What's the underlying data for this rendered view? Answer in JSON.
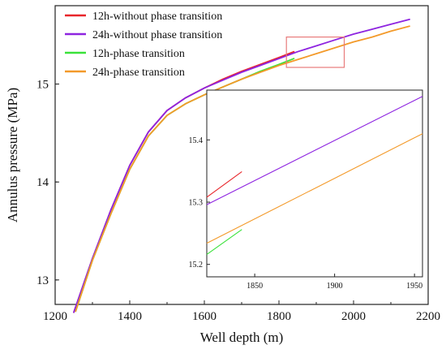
{
  "chart_data": [
    {
      "type": "line",
      "xlabel": "Well depth (m)",
      "ylabel": "Annulus pressure (MPa)",
      "xlim": [
        1200,
        2200
      ],
      "ylim": [
        12.75,
        15.8
      ],
      "xticks": [
        1200,
        1400,
        1600,
        1800,
        2000,
        2200
      ],
      "yticks": [
        13,
        14,
        15
      ],
      "legend_position": "top-left",
      "series": [
        {
          "name": "12h-without phase transition",
          "color": "#e8262b",
          "x": [
            1250,
            1300,
            1350,
            1400,
            1450,
            1500,
            1550,
            1600,
            1650,
            1700,
            1750,
            1800,
            1840
          ],
          "y": [
            12.67,
            13.22,
            13.72,
            14.17,
            14.51,
            14.73,
            14.86,
            14.96,
            15.05,
            15.13,
            15.2,
            15.27,
            15.33
          ]
        },
        {
          "name": "24h-without phase transition",
          "color": "#8e24e0",
          "x": [
            1250,
            1300,
            1350,
            1400,
            1450,
            1500,
            1550,
            1600,
            1650,
            1700,
            1750,
            1800,
            1850,
            1900,
            1950,
            2000,
            2050,
            2100,
            2150
          ],
          "y": [
            12.67,
            13.22,
            13.72,
            14.17,
            14.51,
            14.73,
            14.86,
            14.96,
            15.04,
            15.12,
            15.19,
            15.26,
            15.33,
            15.39,
            15.45,
            15.51,
            15.56,
            15.61,
            15.66
          ]
        },
        {
          "name": "12h-phase transition",
          "color": "#3ae23a",
          "x": [
            1255,
            1300,
            1350,
            1400,
            1450,
            1500,
            1550,
            1600,
            1650,
            1700,
            1750,
            1800,
            1840
          ],
          "y": [
            12.68,
            13.2,
            13.68,
            14.13,
            14.47,
            14.68,
            14.8,
            14.89,
            14.97,
            15.05,
            15.13,
            15.2,
            15.26
          ]
        },
        {
          "name": "24h-phase transition",
          "color": "#f39a2a",
          "x": [
            1255,
            1300,
            1350,
            1400,
            1450,
            1500,
            1550,
            1600,
            1650,
            1700,
            1750,
            1800,
            1850,
            1900,
            1950,
            2000,
            2050,
            2100,
            2150
          ],
          "y": [
            12.68,
            13.2,
            13.68,
            14.13,
            14.47,
            14.68,
            14.8,
            14.89,
            14.97,
            15.05,
            15.12,
            15.19,
            15.25,
            15.31,
            15.37,
            15.43,
            15.48,
            15.54,
            15.59
          ]
        }
      ],
      "zoom_region": {
        "x": [
          1820,
          1975
        ],
        "y": [
          15.17,
          15.48
        ],
        "color": "#e87b7b"
      }
    },
    {
      "type": "line",
      "xlim": [
        1820,
        1955
      ],
      "ylim": [
        15.18,
        15.48
      ],
      "xticks": [
        1850,
        1900,
        1950
      ],
      "yticks": [
        15.2,
        15.3,
        15.4
      ],
      "series": [
        {
          "name": "12h-without phase transition",
          "color": "#e8262b",
          "x": [
            1820,
            1842
          ],
          "y": [
            15.308,
            15.349
          ]
        },
        {
          "name": "24h-without phase transition",
          "color": "#8e24e0",
          "x": [
            1820,
            1955
          ],
          "y": [
            15.296,
            15.47
          ]
        },
        {
          "name": "12h-phase transition",
          "color": "#3ae23a",
          "x": [
            1820,
            1842
          ],
          "y": [
            15.216,
            15.256
          ]
        },
        {
          "name": "24h-phase transition",
          "color": "#f39a2a",
          "x": [
            1820,
            1955
          ],
          "y": [
            15.234,
            15.41
          ]
        }
      ]
    }
  ]
}
